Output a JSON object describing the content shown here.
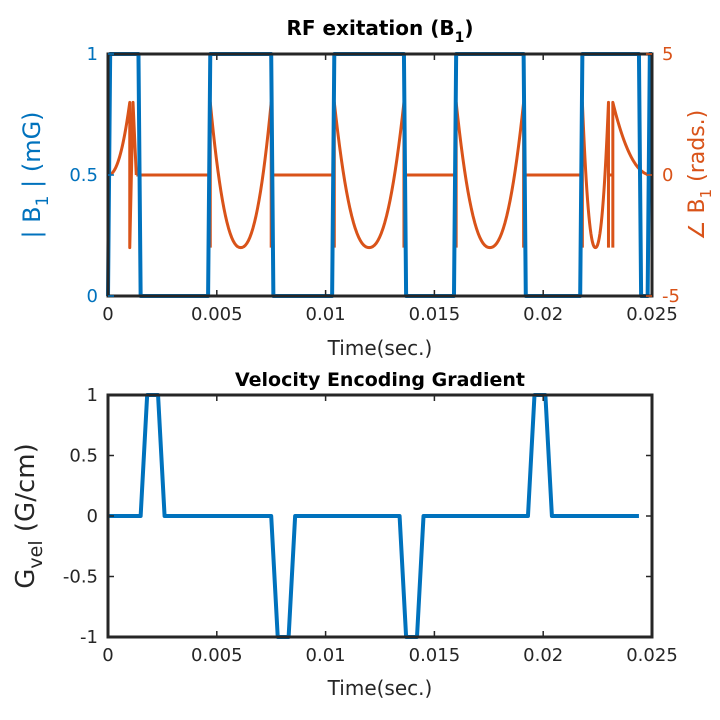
{
  "colors": {
    "blue": "#0072BD",
    "orange": "#D95319",
    "axis": "#262626"
  },
  "chart_data": [
    {
      "type": "line",
      "title": "RF exitation (B",
      "title_sub": "1",
      "title_end": ")",
      "xlabel": "Time(sec.)",
      "ylabel_left": "| B",
      "ylabel_left_sub": "1",
      "ylabel_left_end": " | (mG)",
      "ylabel_right": "∠ B",
      "ylabel_right_sub": "1",
      "ylabel_right_end": " (rads.)",
      "xlim": [
        0,
        0.025
      ],
      "ylim_left": [
        0,
        1
      ],
      "ylim_right": [
        -5,
        5
      ],
      "xticks": [
        0,
        0.005,
        0.01,
        0.015,
        0.02,
        0.025
      ],
      "xtick_labels": [
        "0",
        "0.005",
        "0.01",
        "0.015",
        "0.02",
        "0.025"
      ],
      "yticks_left": [
        0,
        0.5,
        1
      ],
      "ytick_labels_left": [
        "0",
        "0.5",
        "1"
      ],
      "yticks_right": [
        -5,
        0,
        5
      ],
      "ytick_labels_right": [
        "-5",
        "0",
        "5"
      ],
      "series": [
        {
          "axis": "left",
          "color": "#0072BD",
          "points": [
            [
              0,
              0
            ],
            [
              0.0001,
              1
            ],
            [
              0.0014,
              1
            ],
            [
              0.0015,
              0
            ],
            [
              0.0046,
              0
            ],
            [
              0.0047,
              1
            ],
            [
              0.0075,
              1
            ],
            [
              0.0076,
              0
            ],
            [
              0.0103,
              0
            ],
            [
              0.0104,
              1
            ],
            [
              0.0136,
              1
            ],
            [
              0.0137,
              0
            ],
            [
              0.0159,
              0
            ],
            [
              0.016,
              1
            ],
            [
              0.0191,
              1
            ],
            [
              0.0192,
              0
            ],
            [
              0.0217,
              0
            ],
            [
              0.0218,
              1
            ],
            [
              0.0244,
              1
            ],
            [
              0.0245,
              0
            ],
            [
              0.0248,
              0
            ],
            [
              0.0249,
              1
            ],
            [
              0.025,
              1
            ]
          ]
        },
        {
          "axis": "right",
          "color": "#D95319",
          "segments": [
            {
              "kind": "rise",
              "x0": 0,
              "x1": 0.001,
              "y0": 0,
              "y1": 3,
              "ylow": -3
            },
            {
              "kind": "flat",
              "x0": 0.0013,
              "x1": 0.0047,
              "y": 0
            },
            {
              "kind": "trough",
              "x0": 0.0047,
              "x1": 0.0075,
              "y0": 3,
              "ymin": -3
            },
            {
              "kind": "flat",
              "x0": 0.0075,
              "x1": 0.0104,
              "y": 0
            },
            {
              "kind": "trough",
              "x0": 0.0104,
              "x1": 0.0136,
              "y0": 3,
              "ymin": -3
            },
            {
              "kind": "flat",
              "x0": 0.0136,
              "x1": 0.016,
              "y": 0
            },
            {
              "kind": "trough",
              "x0": 0.016,
              "x1": 0.0191,
              "y0": 3,
              "ymin": -3
            },
            {
              "kind": "flat",
              "x0": 0.0191,
              "x1": 0.0218,
              "y": 0
            },
            {
              "kind": "trough",
              "x0": 0.0218,
              "x1": 0.023,
              "y0": 3,
              "ymin": -3
            },
            {
              "kind": "flat",
              "x0": 0.023,
              "x1": 0.0232,
              "y": 0
            },
            {
              "kind": "decay",
              "x0": 0.0232,
              "x1": 0.025,
              "y0": 3,
              "y1": 0,
              "ylow": -3
            }
          ]
        }
      ]
    },
    {
      "type": "line",
      "title": "Velocity Encoding Gradient",
      "xlabel": "Time(sec.)",
      "ylabel_left": "G",
      "ylabel_left_sub": "vel",
      "ylabel_left_end": " (G/cm)",
      "xlim": [
        0,
        0.025
      ],
      "ylim": [
        -1,
        1
      ],
      "xticks": [
        0,
        0.005,
        0.01,
        0.015,
        0.02,
        0.025
      ],
      "xtick_labels": [
        "0",
        "0.005",
        "0.01",
        "0.015",
        "0.02",
        "0.025"
      ],
      "yticks": [
        -1,
        -0.5,
        0,
        0.5,
        1
      ],
      "ytick_labels": [
        "-1",
        "-0.5",
        "0",
        "0.5",
        "1"
      ],
      "series": [
        {
          "color": "#0072BD",
          "x": [
            0,
            0.0015,
            0.0018,
            0.0023,
            0.0026,
            0.0075,
            0.0078,
            0.0083,
            0.0086,
            0.0134,
            0.0137,
            0.0142,
            0.0145,
            0.0193,
            0.0196,
            0.0201,
            0.0204,
            0.0244
          ],
          "y": [
            0,
            0,
            1,
            1,
            0,
            0,
            -1,
            -1,
            0,
            0,
            -1,
            -1,
            0,
            0,
            1,
            1,
            0,
            0
          ]
        }
      ]
    }
  ]
}
